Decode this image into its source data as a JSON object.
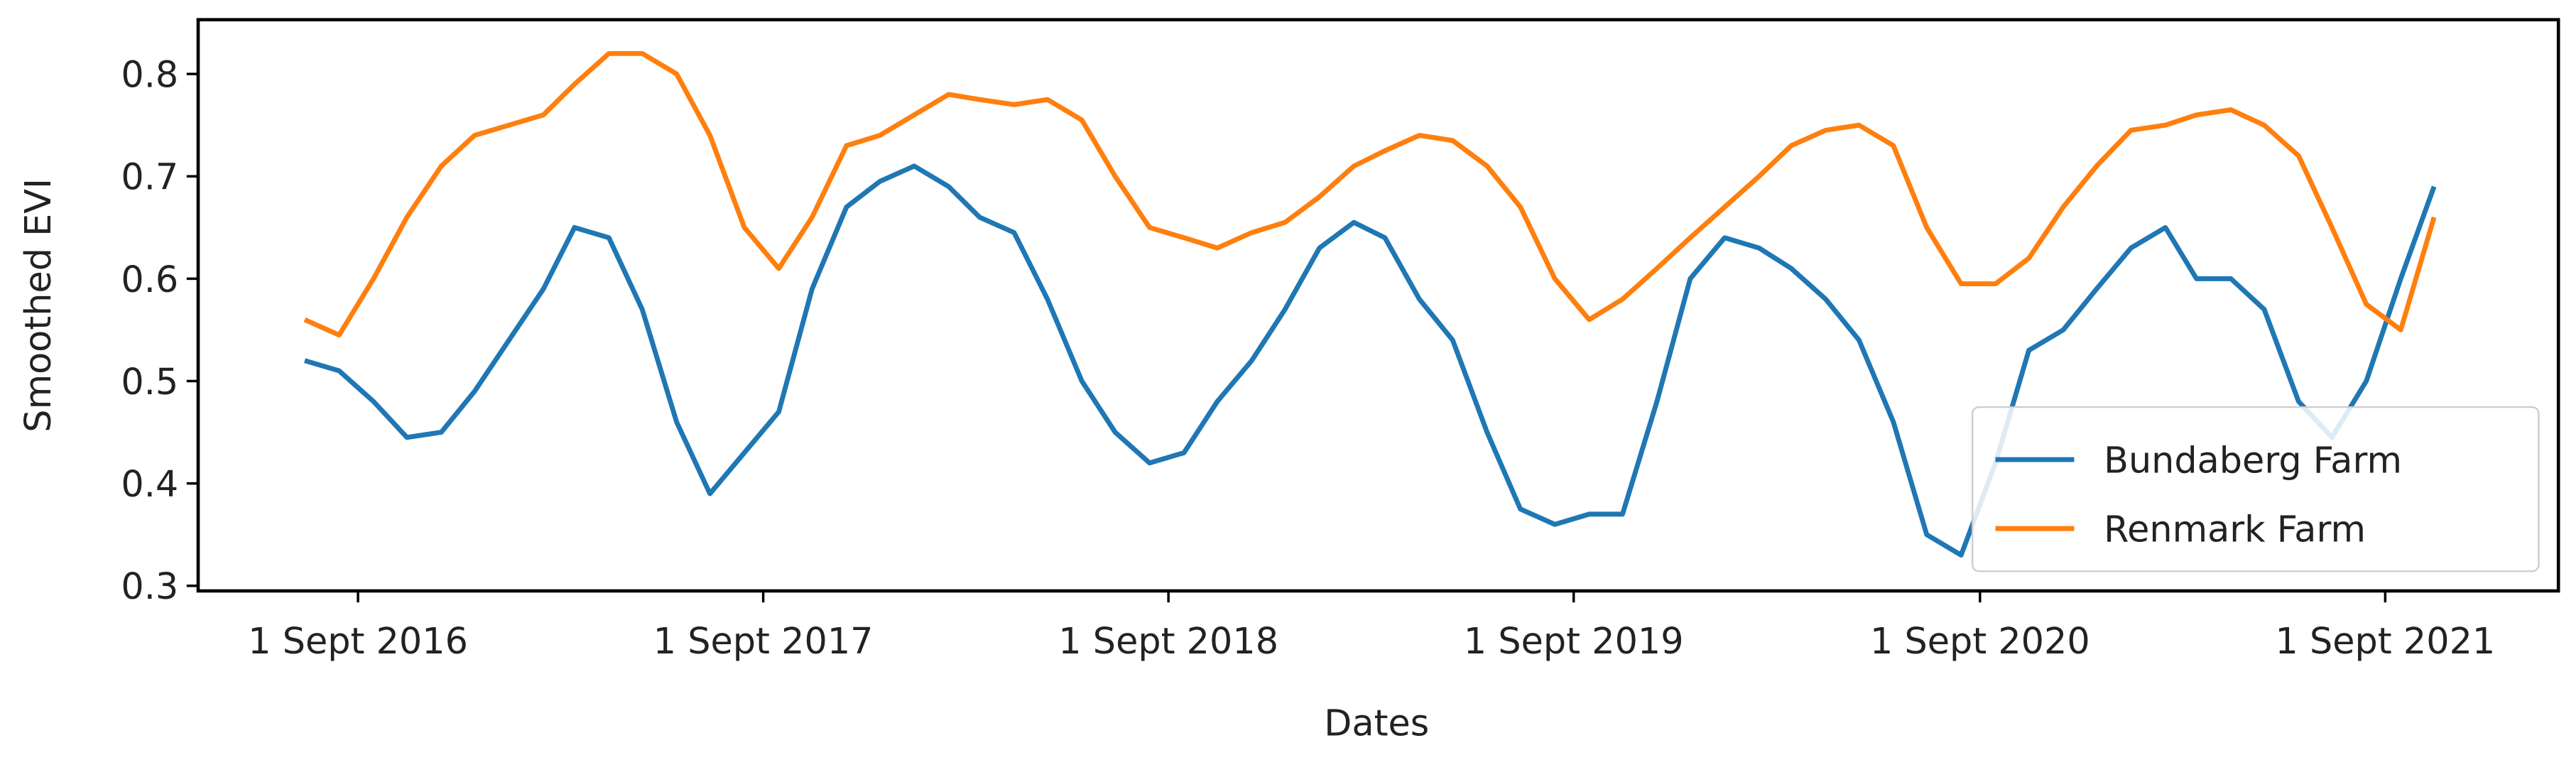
{
  "chart_data": {
    "type": "line",
    "xlabel": "Dates",
    "ylabel": "Smoothed EVI",
    "x": [
      "2016-07-15",
      "2016-08-15",
      "2016-09-15",
      "2016-10-15",
      "2016-11-15",
      "2016-12-15",
      "2017-01-15",
      "2017-02-15",
      "2017-03-15",
      "2017-04-15",
      "2017-05-15",
      "2017-06-15",
      "2017-07-15",
      "2017-08-15",
      "2017-09-15",
      "2017-10-15",
      "2017-11-15",
      "2017-12-15",
      "2018-01-15",
      "2018-02-15",
      "2018-03-15",
      "2018-04-15",
      "2018-05-15",
      "2018-06-15",
      "2018-07-15",
      "2018-08-15",
      "2018-09-15",
      "2018-10-15",
      "2018-11-15",
      "2018-12-15",
      "2019-01-15",
      "2019-02-15",
      "2019-03-15",
      "2019-04-15",
      "2019-05-15",
      "2019-06-15",
      "2019-07-15",
      "2019-08-15",
      "2019-09-15",
      "2019-10-15",
      "2019-11-15",
      "2019-12-15",
      "2020-01-15",
      "2020-02-15",
      "2020-03-15",
      "2020-04-15",
      "2020-05-15",
      "2020-06-15",
      "2020-07-15",
      "2020-08-15",
      "2020-09-15",
      "2020-10-15",
      "2020-11-15",
      "2020-12-15",
      "2021-01-15",
      "2021-02-15",
      "2021-03-15",
      "2021-04-15",
      "2021-05-15",
      "2021-06-15",
      "2021-07-15",
      "2021-08-15",
      "2021-09-15",
      "2021-10-15"
    ],
    "series": [
      {
        "name": "Bundaberg Farm",
        "color": "#1f77b4",
        "values": [
          0.52,
          0.51,
          0.48,
          0.445,
          0.45,
          0.49,
          0.54,
          0.59,
          0.65,
          0.64,
          0.57,
          0.46,
          0.39,
          0.43,
          0.47,
          0.59,
          0.67,
          0.695,
          0.71,
          0.69,
          0.66,
          0.645,
          0.58,
          0.5,
          0.45,
          0.42,
          0.43,
          0.48,
          0.52,
          0.57,
          0.63,
          0.655,
          0.64,
          0.58,
          0.54,
          0.45,
          0.375,
          0.36,
          0.37,
          0.37,
          0.48,
          0.6,
          0.64,
          0.63,
          0.61,
          0.58,
          0.54,
          0.46,
          0.35,
          0.33,
          0.42,
          0.53,
          0.55,
          0.59,
          0.63,
          0.65,
          0.6,
          0.6,
          0.57,
          0.48,
          0.445,
          0.5,
          0.6,
          0.69
        ]
      },
      {
        "name": "Renmark Farm",
        "color": "#ff7f0e",
        "values": [
          0.56,
          0.545,
          0.6,
          0.66,
          0.71,
          0.74,
          0.75,
          0.76,
          0.79,
          0.82,
          0.82,
          0.8,
          0.74,
          0.65,
          0.61,
          0.66,
          0.73,
          0.74,
          0.76,
          0.78,
          0.775,
          0.77,
          0.775,
          0.755,
          0.7,
          0.65,
          0.64,
          0.63,
          0.645,
          0.655,
          0.68,
          0.71,
          0.725,
          0.74,
          0.735,
          0.71,
          0.67,
          0.6,
          0.56,
          0.58,
          0.61,
          0.64,
          0.67,
          0.7,
          0.73,
          0.745,
          0.75,
          0.73,
          0.65,
          0.595,
          0.595,
          0.62,
          0.67,
          0.71,
          0.745,
          0.75,
          0.76,
          0.765,
          0.75,
          0.72,
          0.65,
          0.575,
          0.55,
          0.66
        ]
      }
    ],
    "xlim": [
      "2016-04-10",
      "2022-02-04"
    ],
    "xticks": [
      {
        "value": "2016-09-01",
        "label": "1 Sept 2016"
      },
      {
        "value": "2017-09-01",
        "label": "1 Sept 2017"
      },
      {
        "value": "2018-09-01",
        "label": "1 Sept 2018"
      },
      {
        "value": "2019-09-01",
        "label": "1 Sept 2019"
      },
      {
        "value": "2020-09-01",
        "label": "1 Sept 2020"
      },
      {
        "value": "2021-09-01",
        "label": "1 Sept 2021"
      }
    ],
    "ylim": [
      0.295,
      0.853
    ],
    "yticks": [
      0.3,
      0.4,
      0.5,
      0.6,
      0.7,
      0.8
    ],
    "legend": "lower right",
    "grid": false
  }
}
